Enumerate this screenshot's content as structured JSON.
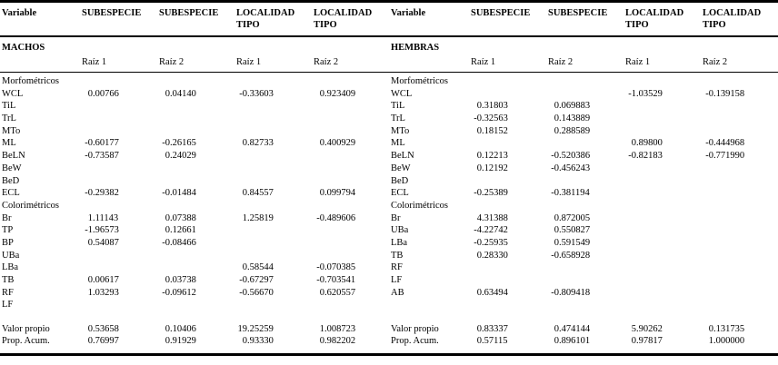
{
  "colors": {
    "text": "#000000",
    "background": "#ffffff",
    "rule": "#000000"
  },
  "table": {
    "halves": [
      {
        "variable_header": "Variable",
        "col_headers": [
          "SUBESPECIE",
          "SUBESPECIE",
          "LOCALIDAD TIPO",
          "LOCALIDAD TIPO"
        ],
        "group_label": "MACHOS",
        "sub_headers": [
          "Raíz 1",
          "Raíz 2",
          "Raíz 1",
          "Raíz 2"
        ],
        "rows": [
          {
            "label": "Morfométricos",
            "section": true,
            "values": [
              "",
              "",
              "",
              ""
            ]
          },
          {
            "label": "WCL",
            "values": [
              "0.00766",
              "0.04140",
              "-0.33603",
              "0.923409"
            ]
          },
          {
            "label": "TiL",
            "values": [
              "",
              "",
              "",
              ""
            ]
          },
          {
            "label": "TrL",
            "values": [
              "",
              "",
              "",
              ""
            ]
          },
          {
            "label": "MTo",
            "values": [
              "",
              "",
              "",
              ""
            ]
          },
          {
            "label": "ML",
            "values": [
              "-0.60177",
              "-0.26165",
              "0.82733",
              "0.400929"
            ]
          },
          {
            "label": "BeLN",
            "values": [
              "-0.73587",
              "0.24029",
              "",
              ""
            ]
          },
          {
            "label": "BeW",
            "values": [
              "",
              "",
              "",
              ""
            ]
          },
          {
            "label": "BeD",
            "values": [
              "",
              "",
              "",
              ""
            ]
          },
          {
            "label": "ECL",
            "values": [
              "-0.29382",
              "-0.01484",
              "0.84557",
              "0.099794"
            ]
          },
          {
            "label": "Colorimétricos",
            "section": true,
            "values": [
              "",
              "",
              "",
              ""
            ]
          },
          {
            "label": "Br",
            "values": [
              "1.11143",
              "0.07388",
              "1.25819",
              "-0.489606"
            ]
          },
          {
            "label": "TP",
            "values": [
              "-1.96573",
              "0.12661",
              "",
              ""
            ]
          },
          {
            "label": "BP",
            "values": [
              "0.54087",
              "-0.08466",
              "",
              ""
            ]
          },
          {
            "label": "UBa",
            "values": [
              "",
              "",
              "",
              ""
            ]
          },
          {
            "label": "LBa",
            "values": [
              "",
              "",
              "0.58544",
              "-0.070385"
            ]
          },
          {
            "label": "TB",
            "values": [
              "0.00617",
              "0.03738",
              "-0.67297",
              "-0.703541"
            ]
          },
          {
            "label": "RF",
            "values": [
              "1.03293",
              "-0.09612",
              "-0.56670",
              "0.620557"
            ]
          },
          {
            "label": "LF",
            "values": [
              "",
              "",
              "",
              ""
            ]
          }
        ],
        "footer_rows": [
          {
            "label": "Valor propio",
            "values": [
              "0.53658",
              "0.10406",
              "19.25259",
              "1.008723"
            ]
          },
          {
            "label": "Prop. Acum.",
            "values": [
              "0.76997",
              "0.91929",
              "0.93330",
              "0.982202"
            ]
          }
        ]
      },
      {
        "variable_header": "Variable",
        "col_headers": [
          "SUBESPECIE",
          "SUBESPECIE",
          "LOCALIDAD TIPO",
          "LOCALIDAD TIPO"
        ],
        "group_label": "HEMBRAS",
        "sub_headers": [
          "Raíz 1",
          "Raíz 2",
          "Raíz 1",
          "Raíz 2"
        ],
        "rows": [
          {
            "label": "Morfométricos",
            "section": true,
            "values": [
              "",
              "",
              "",
              ""
            ]
          },
          {
            "label": "WCL",
            "values": [
              "",
              "",
              "-1.03529",
              "-0.139158"
            ]
          },
          {
            "label": "TiL",
            "values": [
              "0.31803",
              "0.069883",
              "",
              ""
            ]
          },
          {
            "label": "TrL",
            "values": [
              "-0.32563",
              "0.143889",
              "",
              ""
            ]
          },
          {
            "label": "MTo",
            "values": [
              "0.18152",
              "0.288589",
              "",
              ""
            ]
          },
          {
            "label": "ML",
            "values": [
              "",
              "",
              "0.89800",
              "-0.444968"
            ]
          },
          {
            "label": "BeLN",
            "values": [
              "0.12213",
              "-0.520386",
              "-0.82183",
              "-0.771990"
            ]
          },
          {
            "label": "BeW",
            "values": [
              "0.12192",
              "-0.456243",
              "",
              ""
            ]
          },
          {
            "label": "BeD",
            "values": [
              "",
              "",
              "",
              ""
            ]
          },
          {
            "label": "ECL",
            "values": [
              "-0.25389",
              "-0.381194",
              "",
              ""
            ]
          },
          {
            "label": "Colorimétricos",
            "section": true,
            "values": [
              "",
              "",
              "",
              ""
            ]
          },
          {
            "label": "Br",
            "values": [
              "4.31388",
              "0.872005",
              "",
              ""
            ]
          },
          {
            "label": "UBa",
            "values": [
              "-4.22742",
              "0.550827",
              "",
              ""
            ]
          },
          {
            "label": "LBa",
            "values": [
              "-0.25935",
              "0.591549",
              "",
              ""
            ]
          },
          {
            "label": "TB",
            "values": [
              "0.28330",
              "-0.658928",
              "",
              ""
            ]
          },
          {
            "label": "RF",
            "values": [
              "",
              "",
              "",
              ""
            ]
          },
          {
            "label": "LF",
            "values": [
              "",
              "",
              "",
              ""
            ]
          },
          {
            "label": "AB",
            "values": [
              "0.63494",
              "-0.809418",
              "",
              ""
            ]
          }
        ],
        "footer_rows": [
          {
            "label": "Valor propio",
            "values": [
              "0.83337",
              "0.474144",
              "5.90262",
              "0.131735"
            ]
          },
          {
            "label": "Prop. Acum.",
            "values": [
              "0.57115",
              "0.896101",
              "0.97817",
              "1.000000"
            ]
          }
        ]
      }
    ]
  }
}
